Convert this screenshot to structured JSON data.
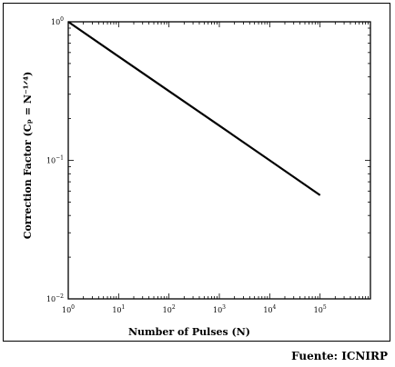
{
  "chart_data": {
    "type": "line",
    "scale": {
      "x": "log",
      "y": "log"
    },
    "xlim": [
      1,
      1000000
    ],
    "ylim": [
      0.01,
      1
    ],
    "xlabel": "Number of Pulses (N)",
    "ylabel": "Correction Factor (Cₚ = N⁻¹ᐟ⁴)",
    "x_ticks": [
      {
        "base": "10",
        "exp": "0"
      },
      {
        "base": "10",
        "exp": "1"
      },
      {
        "base": "10",
        "exp": "2"
      },
      {
        "base": "10",
        "exp": "3"
      },
      {
        "base": "10",
        "exp": "4"
      },
      {
        "base": "10",
        "exp": "5"
      }
    ],
    "y_ticks": [
      {
        "base": "10",
        "exp": "0"
      },
      {
        "base": "10",
        "exp": "−1"
      },
      {
        "base": "10",
        "exp": "−2"
      }
    ],
    "grid": false,
    "series": [
      {
        "x": [
          1,
          10,
          100,
          1000,
          10000,
          100000
        ],
        "y": [
          1.0,
          0.562,
          0.316,
          0.178,
          0.1,
          0.056
        ]
      }
    ],
    "color": "#000000"
  },
  "source": "Fuente: ICNIRP"
}
